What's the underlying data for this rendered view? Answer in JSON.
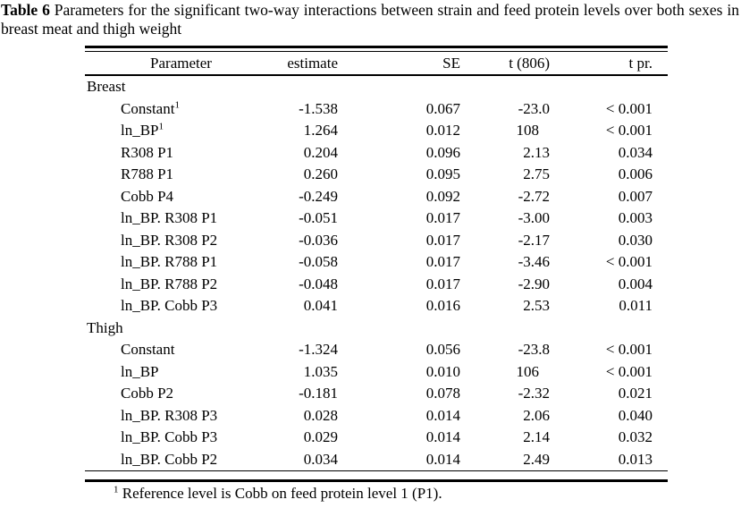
{
  "caption": {
    "label": "Table 6",
    "text": "Parameters for the significant two-way interactions between strain and feed protein levels over both sexes in breast meat and thigh weight"
  },
  "table": {
    "columns": [
      "Parameter",
      "estimate",
      "SE",
      "t (806)",
      "t pr."
    ],
    "sections": [
      {
        "name": "Breast",
        "rows": [
          {
            "parameter": "Constant",
            "sup": "1",
            "estimate": "-1.538",
            "se": "0.067",
            "t": "-23.0",
            "t_pr": "< 0.001"
          },
          {
            "parameter": "ln_BP",
            "sup": "1",
            "estimate": "1.264",
            "se": "0.012",
            "t": "108",
            "t_pr": "< 0.001"
          },
          {
            "parameter": "R308 P1",
            "estimate": "0.204",
            "se": "0.096",
            "t": "2.13",
            "t_pr": "0.034"
          },
          {
            "parameter": "R788 P1",
            "estimate": "0.260",
            "se": "0.095",
            "t": "2.75",
            "t_pr": "0.006"
          },
          {
            "parameter": "Cobb P4",
            "estimate": "-0.249",
            "se": "0.092",
            "t": "-2.72",
            "t_pr": "0.007"
          },
          {
            "parameter": "ln_BP. R308 P1",
            "estimate": "-0.051",
            "se": "0.017",
            "t": "-3.00",
            "t_pr": "0.003"
          },
          {
            "parameter": "ln_BP. R308 P2",
            "estimate": "-0.036",
            "se": "0.017",
            "t": "-2.17",
            "t_pr": "0.030"
          },
          {
            "parameter": "ln_BP. R788 P1",
            "estimate": "-0.058",
            "se": "0.017",
            "t": "-3.46",
            "t_pr": "< 0.001"
          },
          {
            "parameter": "ln_BP. R788 P2",
            "estimate": "-0.048",
            "se": "0.017",
            "t": "-2.90",
            "t_pr": "0.004"
          },
          {
            "parameter": "ln_BP. Cobb P3",
            "estimate": "0.041",
            "se": "0.016",
            "t": "2.53",
            "t_pr": "0.011"
          }
        ]
      },
      {
        "name": "Thigh",
        "rows": [
          {
            "parameter": "Constant",
            "estimate": "-1.324",
            "se": "0.056",
            "t": "-23.8",
            "t_pr": "< 0.001"
          },
          {
            "parameter": "ln_BP",
            "estimate": "1.035",
            "se": "0.010",
            "t": "106",
            "t_pr": "< 0.001"
          },
          {
            "parameter": "Cobb P2",
            "estimate": "-0.181",
            "se": "0.078",
            "t": "-2.32",
            "t_pr": "0.021"
          },
          {
            "parameter": "ln_BP. R308 P3",
            "estimate": "0.028",
            "se": "0.014",
            "t": "2.06",
            "t_pr": "0.040"
          },
          {
            "parameter": "ln_BP. Cobb P3",
            "estimate": "0.029",
            "se": "0.014",
            "t": "2.14",
            "t_pr": "0.032"
          },
          {
            "parameter": "ln_BP. Cobb P2",
            "estimate": "0.034",
            "se": "0.014",
            "t": "2.49",
            "t_pr": "0.013"
          }
        ]
      }
    ],
    "footnote": {
      "sup": "1",
      "text": "Reference level is Cobb on feed protein level 1 (P1)."
    }
  }
}
